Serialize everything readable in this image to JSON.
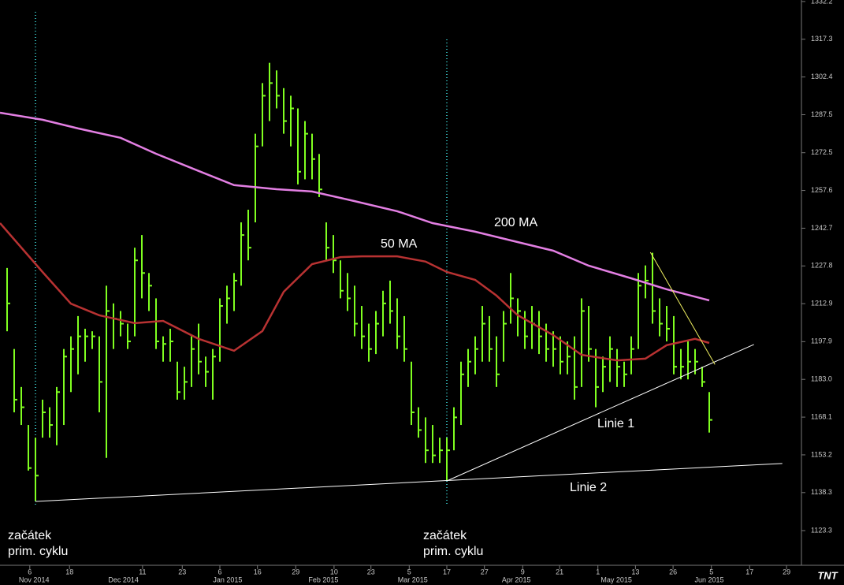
{
  "chart_data": {
    "type": "ohlc",
    "ylim": [
      1109.6,
      1332.8
    ],
    "yticks": [
      1332.2,
      1317.3,
      1302.4,
      1287.5,
      1272.5,
      1257.6,
      1242.7,
      1227.8,
      1212.9,
      1197.9,
      {
        "value": 1183,
        "label": "1183.0"
      },
      1168.1,
      1153.2,
      1138.3,
      1123.3
    ],
    "xlim": [
      0,
      113
    ],
    "xticks": [
      {
        "value": 4.2,
        "label": "6"
      },
      {
        "value": 9.8,
        "label": "18"
      },
      {
        "value": 20.1,
        "label": "11"
      },
      {
        "value": 25.7,
        "label": "23"
      },
      {
        "value": 31,
        "label": "6"
      },
      {
        "value": 36.3,
        "label": "16"
      },
      {
        "value": 41.7,
        "label": "29"
      },
      {
        "value": 47.1,
        "label": "10"
      },
      {
        "value": 52.3,
        "label": "23"
      },
      {
        "value": 57.7,
        "label": "5"
      },
      {
        "value": 63,
        "label": "17"
      },
      {
        "value": 68.3,
        "label": "27"
      },
      {
        "value": 73.7,
        "label": "9"
      },
      {
        "value": 78.9,
        "label": "21"
      },
      {
        "value": 84.3,
        "label": "1"
      },
      {
        "value": 89.6,
        "label": "13"
      },
      {
        "value": 94.9,
        "label": "26"
      },
      {
        "value": 100.3,
        "label": "5"
      },
      {
        "value": 105.7,
        "label": "17"
      },
      {
        "value": 110.9,
        "label": "29"
      }
    ],
    "month_ticks": [
      {
        "value": 4.8,
        "label": "Nov 2014"
      },
      {
        "value": 17.4,
        "label": "Dec 2014"
      },
      {
        "value": 32.1,
        "label": "Jan 2015"
      },
      {
        "value": 45.6,
        "label": "Feb 2015"
      },
      {
        "value": 58.2,
        "label": "Mar 2015"
      },
      {
        "value": 72.8,
        "label": "Apr 2015"
      },
      {
        "value": 86.9,
        "label": "May 2015"
      },
      {
        "value": 100,
        "label": "Jun 2015"
      }
    ],
    "bars": {
      "color": "#80ff20",
      "x": [
        1,
        2,
        3,
        4,
        5,
        6,
        7,
        8,
        9,
        10,
        11,
        12,
        13,
        14,
        15,
        16,
        17,
        18,
        19,
        20,
        21,
        22,
        23,
        24,
        25,
        26,
        27,
        28,
        29,
        30,
        31,
        32,
        33,
        34,
        35,
        36,
        37,
        38,
        39,
        40,
        41,
        42,
        43,
        44,
        45,
        46,
        47,
        48,
        49,
        50,
        51,
        52,
        53,
        54,
        55,
        56,
        57,
        58,
        59,
        60,
        61,
        62,
        63,
        64,
        65,
        66,
        67,
        68,
        69,
        70,
        71,
        72,
        73,
        74,
        75,
        76,
        77,
        78,
        79,
        80,
        81,
        82,
        83,
        84,
        85,
        86,
        87,
        88,
        89,
        90,
        91,
        92,
        93,
        94,
        95,
        96,
        97,
        98,
        99,
        100
      ],
      "high": [
        1227,
        1195,
        1180,
        1165,
        1160,
        1175,
        1172,
        1180,
        1195,
        1200,
        1208,
        1203,
        1202,
        1200,
        1220,
        1213,
        1210,
        1205,
        1235,
        1240,
        1225,
        1215,
        1200,
        1203,
        1190,
        1188,
        1200,
        1205,
        1192,
        1195,
        1215,
        1220,
        1225,
        1245,
        1250,
        1280,
        1300,
        1308,
        1305,
        1298,
        1295,
        1290,
        1285,
        1280,
        1272,
        1245,
        1240,
        1230,
        1225,
        1220,
        1212,
        1205,
        1210,
        1218,
        1222,
        1215,
        1208,
        1190,
        1172,
        1168,
        1165,
        1160,
        1160,
        1172,
        1190,
        1195,
        1200,
        1212,
        1208,
        1200,
        1210,
        1225,
        1215,
        1210,
        1212,
        1210,
        1205,
        1202,
        1200,
        1198,
        1200,
        1215,
        1212,
        1195,
        1192,
        1200,
        1195,
        1190,
        1200,
        1225,
        1228,
        1233,
        1215,
        1212,
        1208,
        1195,
        1198,
        1195,
        1188,
        1178
      ],
      "low": [
        1202,
        1170,
        1165,
        1147,
        1135,
        1160,
        1160,
        1157,
        1165,
        1178,
        1185,
        1190,
        1195,
        1170,
        1152,
        1195,
        1200,
        1195,
        1200,
        1215,
        1210,
        1195,
        1190,
        1190,
        1175,
        1175,
        1180,
        1185,
        1180,
        1175,
        1190,
        1205,
        1210,
        1220,
        1230,
        1245,
        1275,
        1285,
        1290,
        1280,
        1275,
        1260,
        1262,
        1262,
        1255,
        1230,
        1225,
        1215,
        1210,
        1200,
        1195,
        1190,
        1193,
        1200,
        1205,
        1195,
        1190,
        1165,
        1160,
        1150,
        1150,
        1150,
        1143,
        1155,
        1165,
        1180,
        1185,
        1190,
        1190,
        1180,
        1190,
        1205,
        1200,
        1195,
        1195,
        1193,
        1190,
        1188,
        1185,
        1185,
        1175,
        1180,
        1190,
        1172,
        1178,
        1182,
        1180,
        1180,
        1185,
        1195,
        1215,
        1205,
        1200,
        1198,
        1185,
        1183,
        1183,
        1185,
        1180,
        1162
      ],
      "close": [
        1213,
        1175,
        1172,
        1148,
        1145,
        1170,
        1165,
        1178,
        1192,
        1195,
        1200,
        1200,
        1200,
        1182,
        1210,
        1207,
        1205,
        1198,
        1230,
        1225,
        1220,
        1198,
        1197,
        1198,
        1178,
        1182,
        1195,
        1190,
        1186,
        1192,
        1212,
        1215,
        1222,
        1240,
        1235,
        1275,
        1295,
        1300,
        1295,
        1285,
        1290,
        1265,
        1280,
        1270,
        1258,
        1235,
        1230,
        1218,
        1215,
        1205,
        1200,
        1195,
        1205,
        1213,
        1210,
        1200,
        1195,
        1170,
        1163,
        1155,
        1153,
        1155,
        1155,
        1168,
        1185,
        1190,
        1195,
        1205,
        1195,
        1185,
        1205,
        1215,
        1210,
        1200,
        1205,
        1200,
        1195,
        1195,
        1190,
        1192,
        1180,
        1210,
        1195,
        1180,
        1188,
        1195,
        1188,
        1185,
        1195,
        1220,
        1222,
        1210,
        1205,
        1203,
        1188,
        1188,
        1190,
        1190,
        1182,
        1167
      ]
    },
    "ma": [
      {
        "name": "200 MA",
        "color": "#e37fe3",
        "x": [
          0,
          6,
          11,
          17,
          22,
          28,
          33,
          39,
          44,
          50,
          56,
          61,
          67,
          72,
          78,
          83,
          89,
          94,
          100
        ],
        "values": [
          1288.3,
          1285.5,
          1282.1,
          1278.4,
          1272.1,
          1265.3,
          1259.7,
          1258.1,
          1257.2,
          1253.4,
          1249.4,
          1244.7,
          1241.3,
          1237.9,
          1233.8,
          1227.9,
          1222.9,
          1218.6,
          1214.2
        ]
      },
      {
        "name": "50 MA",
        "color": "#b83232",
        "x": [
          0,
          6,
          10,
          14,
          19,
          23,
          28,
          33,
          37,
          40,
          44,
          48,
          51,
          56,
          60,
          63,
          67,
          70,
          73,
          78,
          82,
          87,
          91,
          94,
          98,
          100
        ],
        "values": [
          1244.7,
          1225.4,
          1212.9,
          1208.3,
          1205.2,
          1206.1,
          1199.0,
          1194.3,
          1202.1,
          1217.6,
          1228.5,
          1231.3,
          1231.6,
          1231.6,
          1229.5,
          1225.4,
          1222.3,
          1216.1,
          1208.3,
          1200.5,
          1192.7,
          1190.5,
          1191.2,
          1196.5,
          1199.0,
          1197.4
        ]
      }
    ],
    "lines": [
      {
        "name": "Linie 1",
        "color": "#ffffff",
        "x": [
          63,
          106.3
        ],
        "values": [
          1142.9,
          1196.8
        ]
      },
      {
        "name": "Linie 2",
        "color": "#ffffff",
        "x": [
          5,
          110.3
        ],
        "values": [
          1134.8,
          1149.8
        ]
      },
      {
        "color": "#f0f060",
        "x": [
          91.7,
          100.8
        ],
        "values": [
          1233.2,
          1188.9
        ]
      }
    ],
    "markers": [
      {
        "x": 5,
        "color": "#40e0e0",
        "label": [
          "začátek",
          "prim. cyklu"
        ]
      },
      {
        "x": 63,
        "color": "#40e0e0",
        "label": [
          "začátek",
          "prim. cyklu"
        ]
      }
    ],
    "logo": "TNT"
  }
}
